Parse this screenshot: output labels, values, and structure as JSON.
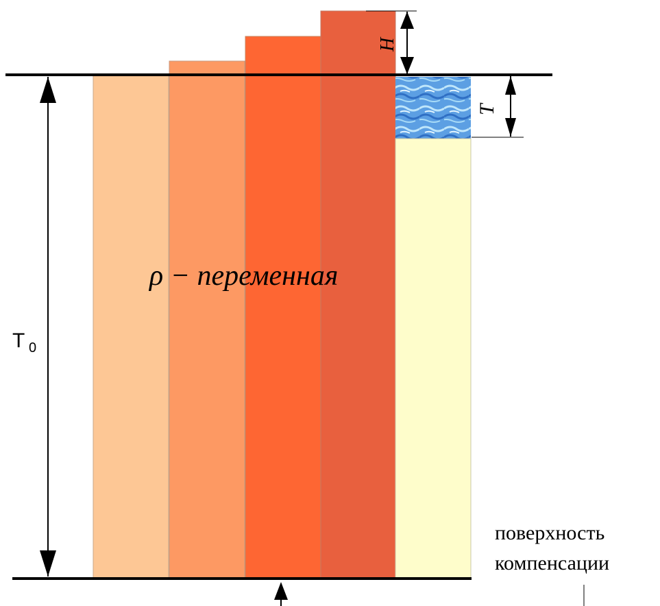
{
  "labels": {
    "density": "ρ − переменная",
    "h_label": "H",
    "t_label": "T",
    "t0_main": "T",
    "t0_sub": "0",
    "compensation_line1": "поверхность",
    "compensation_line2": "компенсации"
  },
  "colors": {
    "column1": "#FDC795",
    "column2": "#FD9963",
    "column3": "#FE6633",
    "column4": "#E8603E",
    "sediment": "#FEFDCB",
    "water_a": "#3E7FD0",
    "water_b": "#9CD3F5",
    "lines": "#000000"
  }
}
